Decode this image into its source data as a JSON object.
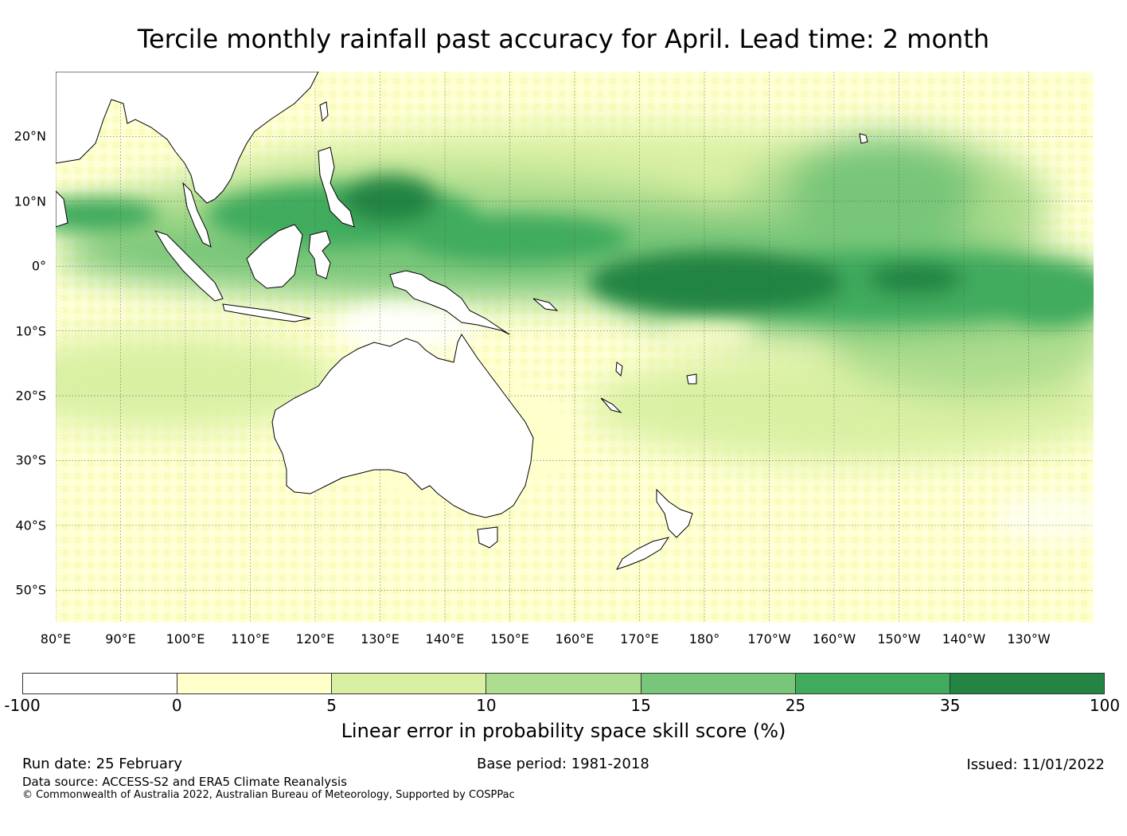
{
  "title": "Tercile monthly rainfall past accuracy for April. Lead time: 2 month",
  "map": {
    "lat_labels": [
      "20°N",
      "10°N",
      "0°",
      "10°S",
      "20°S",
      "30°S",
      "40°S",
      "50°S"
    ],
    "lon_labels": [
      "80°E",
      "90°E",
      "100°E",
      "110°E",
      "120°E",
      "130°E",
      "140°E",
      "150°E",
      "160°E",
      "170°E",
      "180°",
      "170°W",
      "160°W",
      "150°W",
      "140°W",
      "130°W"
    ],
    "lat_range": [
      -55,
      30
    ],
    "lon_range": [
      80,
      240
    ]
  },
  "colorbar": {
    "ticks": [
      "-100",
      "0",
      "5",
      "10",
      "15",
      "25",
      "35",
      "100"
    ],
    "colors": [
      "#ffffff",
      "#ffffcc",
      "#d9f0a3",
      "#addd8e",
      "#78c679",
      "#41ab5d",
      "#238443"
    ],
    "label": "Linear error in probability space skill score (%)"
  },
  "footer": {
    "run_date": "Run date: 25 February",
    "base_period": "Base period: 1981-2018",
    "issued": "Issued: 11/01/2022",
    "data_source": "Data source: ACCESS-S2 and ERA5 Climate Reanalysis",
    "copyright": "© Commonwealth of Australia 2022, Australian Bureau of Meteorology, Supported by COSPPac"
  }
}
